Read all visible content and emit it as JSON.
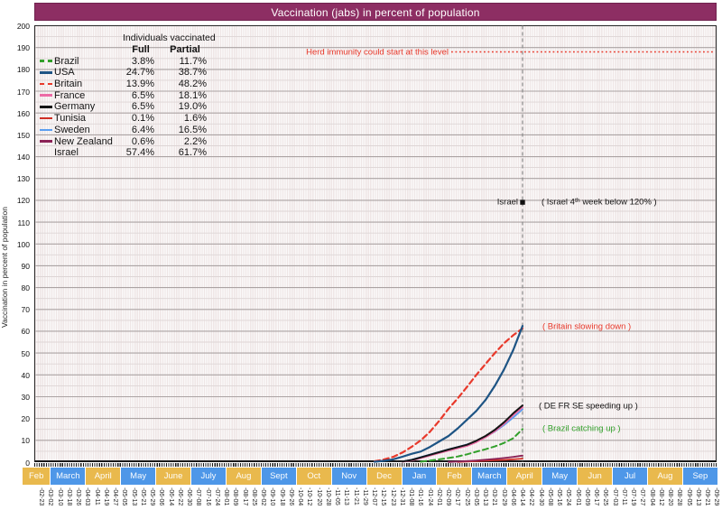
{
  "title": "Vaccination (jabs) in percent of population",
  "colors": {
    "title_bar": "#8d2e63",
    "month_blue": "#4e97e8",
    "month_orange": "#e9b94d",
    "grid_major": "#aba3a3",
    "grid_minor": "#ddd5d5",
    "today_line": "#8a8a8a"
  },
  "y_axis": {
    "label": "Vaccination in percent of population",
    "min": 0,
    "max": 200,
    "major_step": 10,
    "minor_step": 5
  },
  "legend": {
    "header": "Individuals vaccinated",
    "col_full": "Full",
    "col_partial": "Partial",
    "rows": [
      {
        "country": "Brazil",
        "full": "3.8%",
        "partial": "11.7%",
        "color": "#33a02c",
        "dash": true
      },
      {
        "country": "USA",
        "full": "24.7%",
        "partial": "38.7%",
        "color": "#1e5484",
        "dash": false
      },
      {
        "country": "Britain",
        "full": "13.9%",
        "partial": "48.2%",
        "color": "#e8392b",
        "dash": true
      },
      {
        "country": "France",
        "full": "6.5%",
        "partial": "18.1%",
        "color": "#ec6ba5",
        "dash": false
      },
      {
        "country": "Germany",
        "full": "6.5%",
        "partial": "19.0%",
        "color": "#141414",
        "dash": false
      },
      {
        "country": "Tunisia",
        "full": "0.1%",
        "partial": "1.6%",
        "color": "#cf2e24",
        "dash": false
      },
      {
        "country": "Sweden",
        "full": "6.4%",
        "partial": "16.5%",
        "color": "#5b9ef0",
        "dash": false
      },
      {
        "country": "New Zealand",
        "full": "0.6%",
        "partial": "2.2%",
        "color": "#8b2256",
        "dash": false
      },
      {
        "country": "Israel",
        "full": "57.4%",
        "partial": "61.7%",
        "color": null,
        "dash": false
      }
    ]
  },
  "annotations": {
    "herd": {
      "text": "Herd immunity could start at this level",
      "value": 188,
      "color": "#e8392b"
    },
    "israel": {
      "label": "Israel",
      "note": "( Israel 4ᵗʰ week below 120% )",
      "value": 119.1,
      "color": "#141414"
    },
    "britain": {
      "text": "( Britain slowing down )",
      "value": 62,
      "color": "#e8392b"
    },
    "defrse": {
      "text": "( DE FR SE speeding up )",
      "value": 25.8,
      "color": "#141414"
    },
    "brazil": {
      "text": "( Brazil catching up )",
      "value": 15.5,
      "color": "#33a02c"
    }
  },
  "x_axis": {
    "months": [
      {
        "label": "Feb",
        "c": "orange"
      },
      {
        "label": "March",
        "c": "blue"
      },
      {
        "label": "April",
        "c": "orange"
      },
      {
        "label": "May",
        "c": "blue"
      },
      {
        "label": "June",
        "c": "orange"
      },
      {
        "label": "July",
        "c": "blue"
      },
      {
        "label": "Aug",
        "c": "orange"
      },
      {
        "label": "Sept",
        "c": "blue"
      },
      {
        "label": "Oct",
        "c": "orange"
      },
      {
        "label": "Nov",
        "c": "blue"
      },
      {
        "label": "Dec",
        "c": "orange"
      },
      {
        "label": "Jan",
        "c": "blue"
      },
      {
        "label": "Feb",
        "c": "orange"
      },
      {
        "label": "March",
        "c": "blue"
      },
      {
        "label": "April",
        "c": "orange"
      },
      {
        "label": "May",
        "c": "blue"
      },
      {
        "label": "Jun",
        "c": "orange"
      },
      {
        "label": "Jul",
        "c": "blue"
      },
      {
        "label": "Aug",
        "c": "orange"
      },
      {
        "label": "Sep",
        "c": "blue"
      }
    ]
  },
  "chart_data": {
    "type": "line",
    "title": "Vaccination (jabs) in percent of population",
    "ylabel": "Vaccination in percent of population",
    "ylim": [
      0,
      200
    ],
    "grid": true,
    "today_index": 52,
    "x_tick_labels": [
      "-02-23",
      "-03-02",
      "-03-10",
      "-03-18",
      "-03-26",
      "-04-03",
      "-04-11",
      "-04-19",
      "-04-27",
      "-05-05",
      "-05-13",
      "-05-21",
      "-05-29",
      "-06-06",
      "-06-14",
      "-06-22",
      "-06-30",
      "-07-08",
      "-07-16",
      "-07-24",
      "-08-01",
      "-08-09",
      "-08-17",
      "-08-25",
      "-09-02",
      "-09-10",
      "-09-18",
      "-09-26",
      "-10-04",
      "-10-12",
      "-10-20",
      "-10-28",
      "-11-05",
      "-11-13",
      "-11-21",
      "-11-29",
      "-12-07",
      "-12-15",
      "-12-23",
      "-12-31",
      "-01-08",
      "-01-16",
      "-01-24",
      "-02-01",
      "-02-09",
      "-02-17",
      "-02-25",
      "-03-05",
      "-03-13",
      "-03-21",
      "-03-29",
      "-04-06",
      "-04-14",
      "-04-22",
      "-04-30",
      "-05-08",
      "-05-16",
      "-05-24",
      "-06-01",
      "-06-09",
      "-06-17",
      "-06-25",
      "-07-03",
      "-07-11",
      "-07-19",
      "-07-27",
      "-08-04",
      "-08-12",
      "-08-20",
      "-08-28",
      "-09-05",
      "-09-13",
      "-09-21",
      "-09-29"
    ],
    "series": [
      {
        "id": "brazil",
        "name": "Brazil",
        "color": "#33a02c",
        "dash": true,
        "width": 2,
        "start_index": 41,
        "values": [
          0.2,
          0.7,
          1.3,
          1.9,
          2.6,
          3.6,
          4.8,
          5.9,
          7.2,
          8.8,
          11,
          15.2
        ]
      },
      {
        "id": "sweden",
        "name": "Sweden",
        "color": "#5b9ef0",
        "dash": false,
        "width": 1.8,
        "start_index": 39,
        "values": [
          0.3,
          1.1,
          2.3,
          3.5,
          4.7,
          5.9,
          7,
          8.1,
          9.5,
          11.6,
          14,
          17,
          20.5,
          24.2
        ]
      },
      {
        "id": "france",
        "name": "France",
        "color": "#ec6ba5",
        "dash": false,
        "width": 2,
        "start_index": 39,
        "values": [
          0.2,
          0.8,
          1.9,
          3,
          4.2,
          5.3,
          6.4,
          7.5,
          9.2,
          11.4,
          14.2,
          17.6,
          21.6,
          25.2
        ]
      },
      {
        "id": "germany",
        "name": "Germany",
        "color": "#141414",
        "dash": false,
        "width": 2,
        "start_index": 39,
        "values": [
          0.3,
          1,
          2.2,
          3.4,
          4.6,
          5.8,
          6.9,
          8,
          9.8,
          12,
          14.8,
          18.3,
          22.4,
          26
        ]
      },
      {
        "id": "tunisia",
        "name": "Tunisia",
        "color": "#cf2e24",
        "dash": false,
        "width": 1.8,
        "start_index": 45,
        "values": [
          0.1,
          0.25,
          0.45,
          0.65,
          0.85,
          1.05,
          1.3,
          1.6
        ]
      },
      {
        "id": "new_zealand",
        "name": "New Zealand",
        "color": "#8b2256",
        "dash": false,
        "width": 1.8,
        "start_index": 44,
        "values": [
          0.1,
          0.3,
          0.5,
          0.8,
          1.1,
          1.5,
          1.9,
          2.4,
          3
        ]
      },
      {
        "id": "britain",
        "name": "Britain",
        "color": "#e8392b",
        "dash": true,
        "width": 2.2,
        "start_index": 36,
        "values": [
          0.4,
          1.2,
          2.4,
          4.4,
          7,
          10,
          14,
          19,
          24.5,
          29.3,
          34.5,
          40,
          45,
          50,
          54.5,
          58.2,
          61.3
        ]
      },
      {
        "id": "usa",
        "name": "USA",
        "color": "#1e5484",
        "dash": false,
        "width": 2.2,
        "start_index": 36,
        "values": [
          0.2,
          0.6,
          1.3,
          2.5,
          3.8,
          4.9,
          7,
          9.5,
          12,
          15.5,
          19.5,
          23.5,
          28.5,
          35,
          42.5,
          51.5,
          62.4
        ]
      }
    ],
    "israel_point": {
      "name": "Israel",
      "index": 52,
      "value": 119.1
    }
  }
}
